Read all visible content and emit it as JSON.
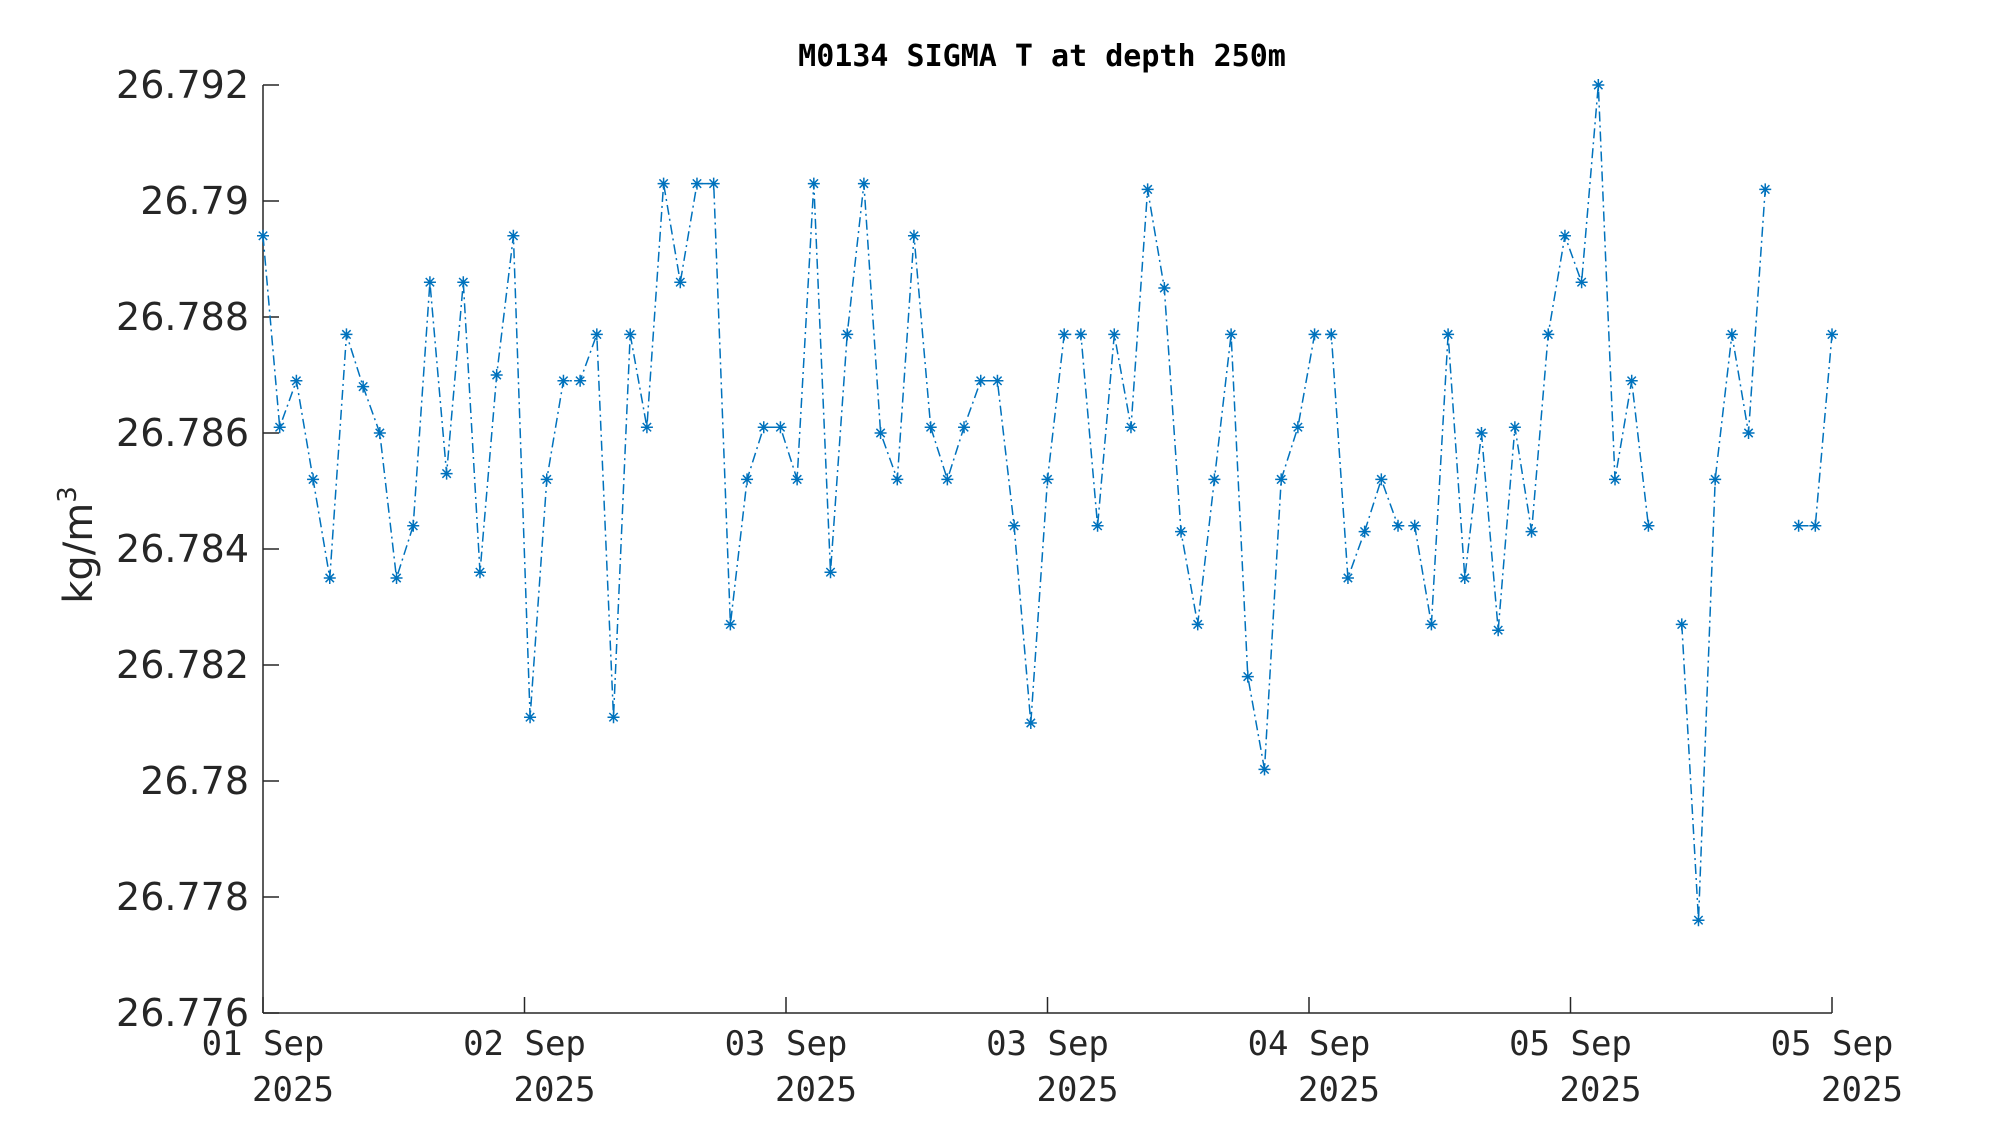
{
  "chart_data": {
    "type": "line",
    "title": "M0134 SIGMA T at depth 250m",
    "ylabel": "kg/m",
    "ylabel_superscript": "3",
    "ylim": [
      26.776,
      26.792
    ],
    "xlim": [
      0,
      6
    ],
    "yticks": [
      26.776,
      26.778,
      26.78,
      26.782,
      26.784,
      26.786,
      26.788,
      26.79,
      26.792
    ],
    "ytick_labels": [
      "26.776",
      "26.778",
      "26.78",
      "26.782",
      "26.784",
      "26.786",
      "26.788",
      "26.79",
      "26.792"
    ],
    "xticks": [
      0,
      1,
      2,
      3,
      4,
      5,
      6
    ],
    "xtick_labels": [
      [
        "01 Sep",
        "2025"
      ],
      [
        "02 Sep",
        "2025"
      ],
      [
        "03 Sep",
        "2025"
      ],
      [
        "03 Sep",
        "2025"
      ],
      [
        "04 Sep",
        "2025"
      ],
      [
        "05 Sep",
        "2025"
      ],
      [
        "05 Sep",
        "2025"
      ]
    ],
    "line_style": "dash-dot",
    "marker": "asterisk",
    "color": "#0072BD",
    "series": [
      {
        "y": [
          26.7894,
          26.7861,
          26.7869,
          26.7852,
          26.7835,
          26.7877,
          26.7868,
          26.786,
          26.7835,
          26.7844,
          26.7886,
          26.7853,
          26.7886,
          26.7836,
          26.787,
          26.7894,
          26.7811,
          26.7852,
          26.7869,
          26.7869,
          26.7877,
          26.7811,
          26.7877,
          26.7861,
          26.7903,
          26.7886,
          26.7903,
          26.7903,
          26.7827,
          26.7852,
          26.7861,
          26.7861,
          26.7852,
          26.7903,
          26.7836,
          26.7877,
          26.7903,
          26.786,
          26.7852,
          26.7894,
          26.7861,
          26.7852,
          26.7861,
          26.7869,
          26.7869,
          26.7844,
          26.781,
          26.7852,
          26.7877,
          26.7877,
          26.7844,
          26.7877,
          26.7861,
          26.7902,
          26.7885,
          26.7843,
          26.7827,
          26.7852,
          26.7877,
          26.7818,
          26.7802,
          26.7852,
          26.7861,
          26.7877,
          26.7877,
          26.7835,
          26.7843,
          26.7852,
          26.7844,
          26.7844,
          26.7827,
          26.7877,
          26.7835,
          26.786,
          26.7826,
          26.7861,
          26.7843,
          26.7877,
          26.7894,
          26.7886,
          26.792,
          26.7852,
          26.7869,
          26.7844,
          null,
          26.7827,
          26.7776,
          26.7852,
          26.7877,
          26.786,
          26.7902,
          null,
          26.7844,
          26.7844,
          26.7877
        ]
      }
    ]
  }
}
